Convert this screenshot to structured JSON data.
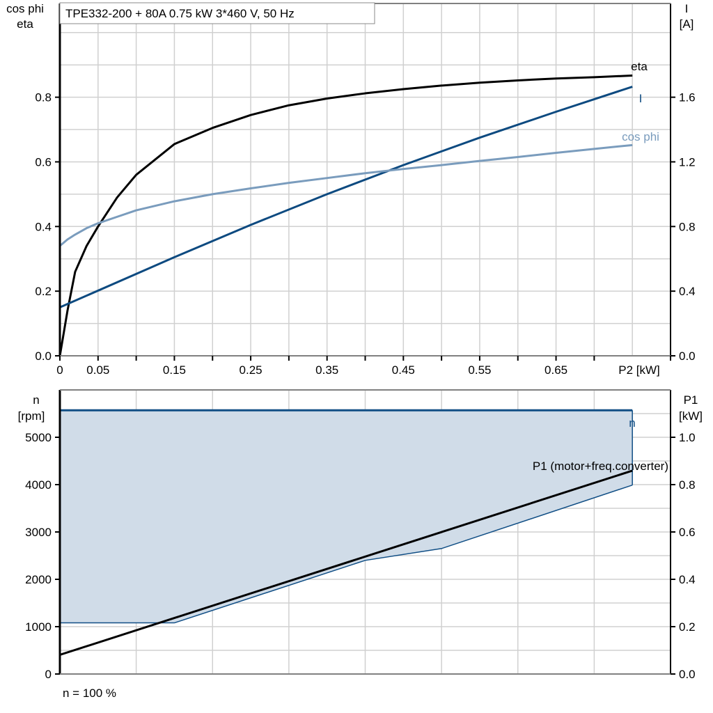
{
  "title": "TPE332-200 + 80A   0.75 kW   3*460 V, 50 Hz",
  "footer_note": "n = 100 %",
  "colors": {
    "eta": "#000000",
    "I": "#0d4a80",
    "cos_phi": "#7a9cbd",
    "n": "#104e85",
    "n_fill": "#d0dce8",
    "P1": "#000000",
    "grid": "#d0d0d0"
  },
  "chart_data": [
    {
      "type": "line",
      "xlabel": "P2 [kW]",
      "ylabel_left": [
        "cos phi",
        "eta"
      ],
      "ylabel_right": [
        "I",
        "[A]"
      ],
      "xlim": [
        0,
        0.8
      ],
      "ylim_left": [
        0,
        1.09
      ],
      "ylim_right": [
        0,
        2.18
      ],
      "grid": true,
      "x_ticks": [
        "0",
        "0.05",
        "0.15",
        "0.25",
        "0.35",
        "0.45",
        "0.55",
        "0.65"
      ],
      "x_tick_values": [
        0,
        0.05,
        0.15,
        0.25,
        0.35,
        0.45,
        0.55,
        0.65
      ],
      "y_ticks_left": [
        "0.0",
        "0.2",
        "0.4",
        "0.6",
        "0.8"
      ],
      "y_ticks_right": [
        "0.0",
        "0.4",
        "0.8",
        "1.2",
        "1.6"
      ],
      "series": [
        {
          "name": "eta",
          "axis": "left",
          "color_key": "eta",
          "x": [
            0,
            0.01,
            0.02,
            0.035,
            0.05,
            0.075,
            0.1,
            0.15,
            0.2,
            0.25,
            0.3,
            0.35,
            0.4,
            0.45,
            0.5,
            0.55,
            0.6,
            0.65,
            0.7,
            0.75
          ],
          "y": [
            0,
            0.14,
            0.26,
            0.34,
            0.4,
            0.49,
            0.56,
            0.655,
            0.705,
            0.745,
            0.775,
            0.796,
            0.812,
            0.825,
            0.836,
            0.845,
            0.852,
            0.858,
            0.862,
            0.867
          ]
        },
        {
          "name": "I",
          "axis": "right",
          "color_key": "I",
          "x": [
            0,
            0.15,
            0.25,
            0.35,
            0.45,
            0.55,
            0.65,
            0.75
          ],
          "y": [
            0.3,
            0.61,
            0.81,
            1.0,
            1.18,
            1.35,
            1.51,
            1.665
          ]
        },
        {
          "name": "cos phi",
          "axis": "left",
          "color_key": "cos_phi",
          "x": [
            0,
            0.01,
            0.02,
            0.035,
            0.05,
            0.075,
            0.1,
            0.15,
            0.2,
            0.25,
            0.3,
            0.35,
            0.4,
            0.45,
            0.5,
            0.55,
            0.6,
            0.65,
            0.7,
            0.75
          ],
          "y": [
            0.34,
            0.36,
            0.375,
            0.395,
            0.41,
            0.43,
            0.45,
            0.478,
            0.5,
            0.518,
            0.535,
            0.55,
            0.565,
            0.578,
            0.59,
            0.603,
            0.615,
            0.628,
            0.64,
            0.652
          ]
        }
      ]
    },
    {
      "type": "area",
      "ylabel_left": [
        "n",
        "[rpm]"
      ],
      "ylabel_right": [
        "P1",
        "[kW]"
      ],
      "xlim": [
        0,
        0.8
      ],
      "ylim_left": [
        0,
        6000
      ],
      "ylim_right": [
        0,
        1.2
      ],
      "grid": true,
      "y_ticks_left": [
        "0",
        "1000",
        "2000",
        "3000",
        "4000",
        "5000"
      ],
      "y_ticks_right": [
        "0.0",
        "0.2",
        "0.4",
        "0.6",
        "0.8",
        "1.0"
      ],
      "series": [
        {
          "name": "n",
          "axis": "left",
          "color_key": "n",
          "x_upper": [
            0,
            0.75
          ],
          "y_upper": [
            5570,
            5570
          ],
          "x_lower": [
            0,
            0.15,
            0.4,
            0.5,
            0.75
          ],
          "y_lower": [
            1080,
            1080,
            2400,
            2650,
            3990
          ]
        },
        {
          "name": "P1 (motor+freq.converter)",
          "axis": "right",
          "color_key": "P1",
          "x": [
            0,
            0.75
          ],
          "y": [
            0.081,
            0.859
          ]
        }
      ]
    }
  ]
}
